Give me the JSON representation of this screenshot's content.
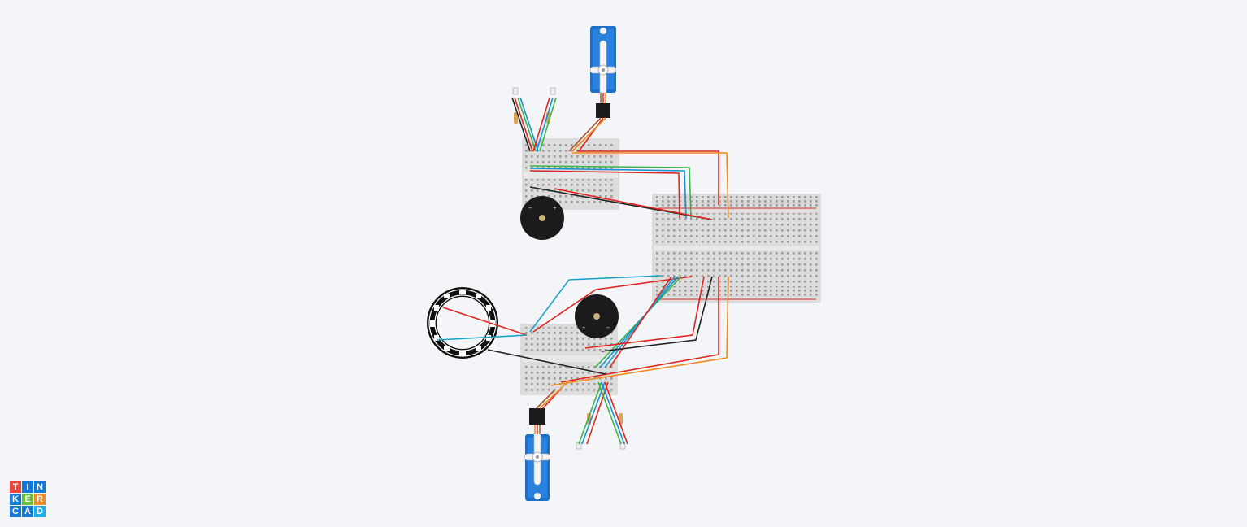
{
  "app": {
    "name": "Tinkercad",
    "view": "Circuits"
  },
  "logo": {
    "letters": [
      "T",
      "I",
      "N",
      "K",
      "E",
      "R",
      "C",
      "A",
      "D"
    ],
    "colors": [
      "#e2483d",
      "#1477d1",
      "#1477d1",
      "#1477d1",
      "#6bbf3a",
      "#f08a24",
      "#1477d1",
      "#1477d1",
      "#1ab2e8"
    ]
  },
  "components": [
    {
      "id": "servo-top",
      "type": "micro-servo"
    },
    {
      "id": "servo-bottom",
      "type": "micro-servo"
    },
    {
      "id": "breadboard-small-top",
      "type": "breadboard-small"
    },
    {
      "id": "breadboard-small-bottom",
      "type": "breadboard-small"
    },
    {
      "id": "breadboard-main",
      "type": "breadboard"
    },
    {
      "id": "buzzer-top",
      "type": "piezo"
    },
    {
      "id": "buzzer-bottom",
      "type": "piezo"
    },
    {
      "id": "neopixel-ring",
      "type": "neopixel-ring-12"
    },
    {
      "id": "led-rgb-top",
      "type": "rgb-led-pair"
    },
    {
      "id": "led-rgb-bottom",
      "type": "rgb-led-pair"
    }
  ],
  "wire_colors": {
    "red": "#e0241f",
    "orange": "#f08a1c",
    "green": "#3ab54a",
    "blue": "#1b8fd6",
    "black": "#222222",
    "brown": "#a0522d",
    "teal": "#1aa3c8"
  }
}
